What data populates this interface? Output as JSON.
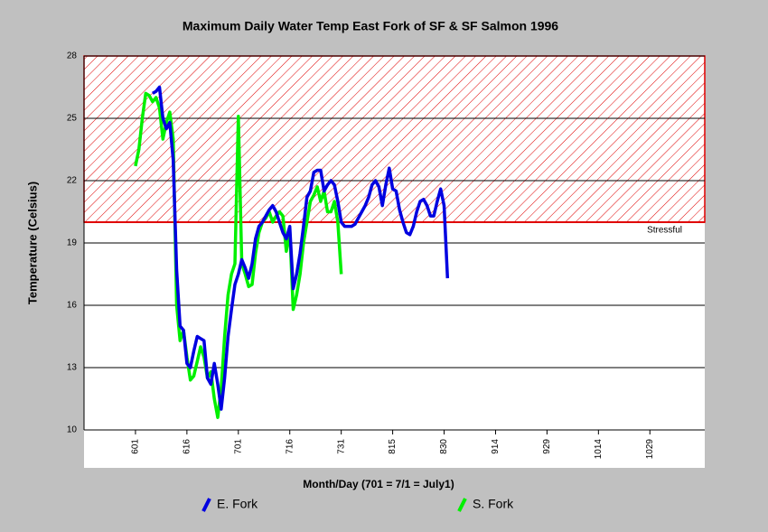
{
  "chart_data": {
    "type": "line",
    "title": "Maximum Daily Water Temp East Fork of SF & SF Salmon 1996",
    "x_label": "Month/Day (701 = 7/1 = July1)",
    "y_label": "Temperature (Celsius)",
    "xlim": [
      138,
      319
    ],
    "ylim": [
      10,
      28
    ],
    "yticks": [
      10,
      13,
      16,
      19,
      22,
      25,
      28
    ],
    "xticks": [
      {
        "value": 153,
        "label": "601"
      },
      {
        "value": 168,
        "label": "616"
      },
      {
        "value": 183,
        "label": "701"
      },
      {
        "value": 198,
        "label": "716"
      },
      {
        "value": 213,
        "label": "731"
      },
      {
        "value": 228,
        "label": "815"
      },
      {
        "value": 243,
        "label": "830"
      },
      {
        "value": 258,
        "label": "914"
      },
      {
        "value": 273,
        "label": "929"
      },
      {
        "value": 288,
        "label": "1014"
      },
      {
        "value": 303,
        "label": "1029"
      }
    ],
    "grid": true,
    "threshold": {
      "value": 20,
      "label": "Stressful",
      "color": "#e00000"
    },
    "x": [
      153,
      154,
      155,
      156,
      157,
      158,
      159,
      160,
      161,
      162,
      163,
      164,
      165,
      166,
      167,
      168,
      169,
      170,
      171,
      172,
      173,
      174,
      175,
      176,
      177,
      178,
      179,
      180,
      181,
      182,
      183,
      184,
      185,
      186,
      187,
      188,
      189,
      190,
      191,
      192,
      193,
      194,
      195,
      196,
      197,
      198,
      199,
      200,
      201,
      202,
      203,
      204,
      205,
      206,
      207,
      208,
      209,
      210,
      211,
      212,
      213,
      214,
      215,
      216,
      217,
      218,
      219,
      220,
      221,
      222,
      223,
      224,
      225,
      226,
      227,
      228,
      229,
      230,
      231,
      232,
      233,
      234,
      235,
      236,
      237,
      238,
      239,
      240,
      241,
      242,
      243,
      244
    ],
    "series": [
      {
        "name": "E. Fork",
        "color": "#0000e0",
        "values": [
          null,
          null,
          null,
          null,
          null,
          26.2,
          26.3,
          26.5,
          25.0,
          24.5,
          24.8,
          23.0,
          17.7,
          15.0,
          14.8,
          13.2,
          13.0,
          13.8,
          14.5,
          14.4,
          14.3,
          12.5,
          12.2,
          13.2,
          12.2,
          11.0,
          12.5,
          14.5,
          15.8,
          17.0,
          17.5,
          18.2,
          17.8,
          17.3,
          18.0,
          19.2,
          19.8,
          20.0,
          20.3,
          20.6,
          20.8,
          20.5,
          20.0,
          19.5,
          19.2,
          19.8,
          16.8,
          17.5,
          18.5,
          19.8,
          21.2,
          21.5,
          22.4,
          22.5,
          22.5,
          21.5,
          21.8,
          22.0,
          21.8,
          21.0,
          20.0,
          19.8,
          19.8,
          19.8,
          19.9,
          20.2,
          20.5,
          20.8,
          21.2,
          21.8,
          22.0,
          21.7,
          20.8,
          21.8,
          22.6,
          21.6,
          21.5,
          20.6,
          20.0,
          19.5,
          19.4,
          19.8,
          20.5,
          21.0,
          21.1,
          20.8,
          20.3,
          20.3,
          21.0,
          21.6,
          20.8,
          17.3
        ]
      },
      {
        "name": "S. Fork",
        "color": "#00f000",
        "values": [
          22.7,
          23.5,
          25.0,
          26.2,
          26.1,
          25.8,
          26.0,
          25.5,
          24.0,
          24.8,
          25.3,
          24.0,
          16.0,
          14.3,
          14.8,
          13.5,
          12.4,
          12.6,
          13.3,
          14.0,
          13.5,
          12.5,
          12.8,
          11.5,
          10.6,
          12.0,
          14.5,
          16.5,
          17.5,
          18.0,
          25.1,
          18.0,
          17.5,
          16.9,
          17.0,
          18.5,
          19.5,
          20.0,
          20.2,
          20.5,
          20.0,
          20.3,
          20.5,
          20.3,
          18.6,
          19.6,
          15.8,
          16.5,
          17.5,
          19.0,
          20.0,
          21.0,
          21.3,
          21.7,
          21.0,
          21.5,
          20.5,
          20.5,
          21.0,
          20.0,
          17.5,
          null,
          null,
          null,
          null,
          null,
          null,
          null,
          null,
          null,
          null,
          null,
          null,
          null,
          null,
          null,
          null,
          null,
          null,
          null,
          null,
          null,
          null,
          null,
          null,
          null,
          null,
          null,
          null,
          null,
          null,
          null
        ]
      }
    ]
  }
}
